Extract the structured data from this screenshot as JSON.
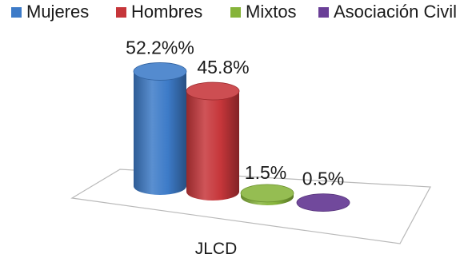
{
  "chart_data": {
    "type": "bar",
    "style": "3d-cylinder",
    "categories": [
      "JLCD"
    ],
    "series": [
      {
        "name": "Mujeres",
        "values": [
          52.2
        ],
        "label": "52.2%%",
        "color": "#3d7bc8"
      },
      {
        "name": "Hombres",
        "values": [
          45.8
        ],
        "label": "45.8%",
        "color": "#c6363a"
      },
      {
        "name": "Mixtos",
        "values": [
          1.5
        ],
        "label": "1.5%",
        "color": "#86b43a"
      },
      {
        "name": "Asociación Civil",
        "values": [
          0.5
        ],
        "label": "0.5%",
        "color": "#6a3f97"
      }
    ],
    "ylim": [
      0,
      60
    ],
    "unit": "%",
    "legend_position": "top",
    "grid": false
  }
}
